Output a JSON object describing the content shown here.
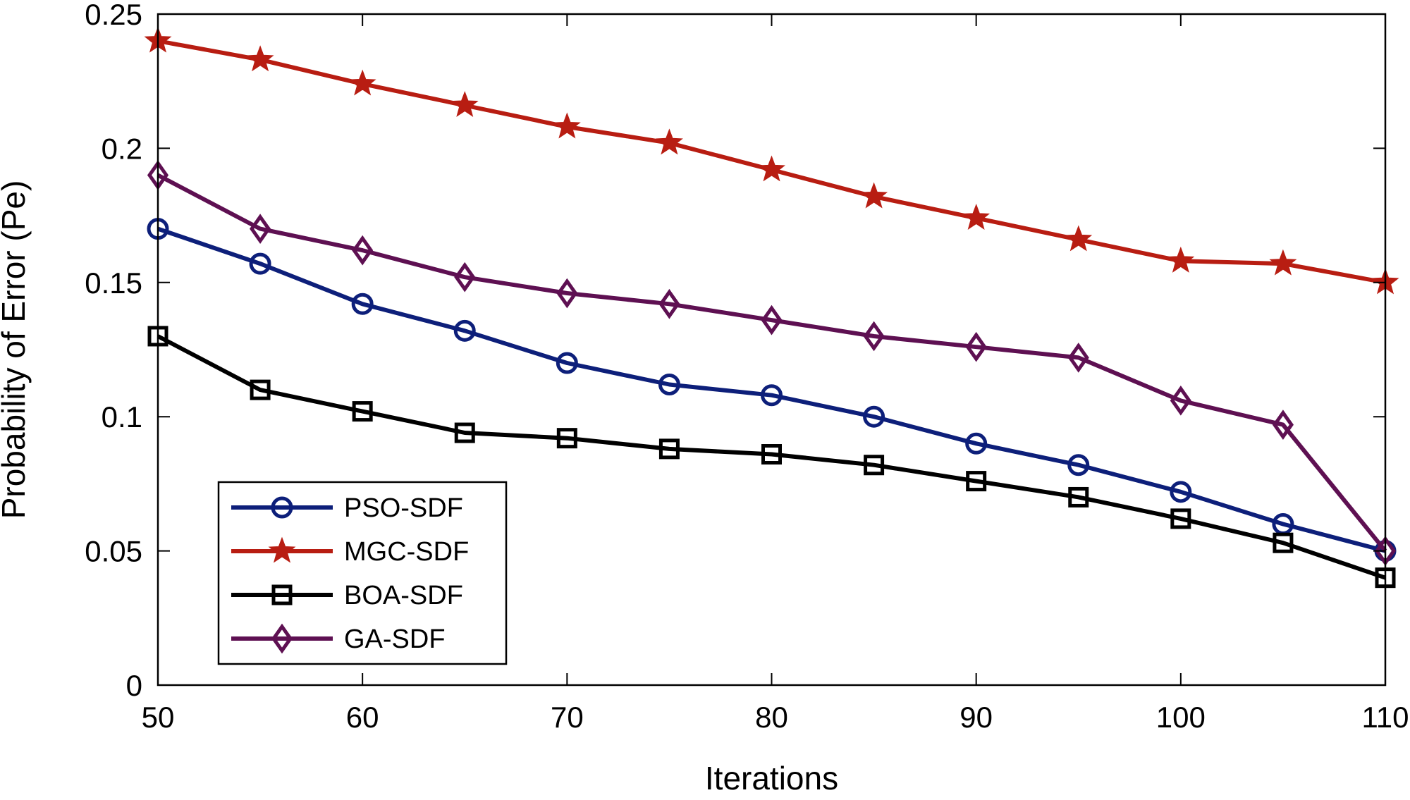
{
  "chart_data": {
    "type": "line",
    "title": "",
    "xlabel": "Iterations",
    "ylabel": "Probability of Error (Pe)",
    "xlim": [
      50,
      110
    ],
    "ylim": [
      0,
      0.25
    ],
    "xticks": [
      50,
      60,
      70,
      80,
      90,
      100,
      110
    ],
    "yticks": [
      0,
      0.05,
      0.1,
      0.15,
      0.2,
      0.25
    ],
    "xtick_labels": [
      "50",
      "60",
      "70",
      "80",
      "90",
      "100",
      "110"
    ],
    "ytick_labels": [
      "0",
      "0.05",
      "0.1",
      "0.15",
      "0.2",
      "0.25"
    ],
    "grid": false,
    "legend_position": "bottom-left",
    "x": [
      50,
      55,
      60,
      65,
      70,
      75,
      80,
      85,
      90,
      95,
      100,
      105,
      110
    ],
    "series": [
      {
        "name": "PSO-SDF",
        "color": "#0d1f7a",
        "marker": "circle",
        "values": [
          0.17,
          0.157,
          0.142,
          0.132,
          0.12,
          0.112,
          0.108,
          0.1,
          0.09,
          0.082,
          0.072,
          0.06,
          0.05
        ]
      },
      {
        "name": "MGC-SDF",
        "color": "#b81d12",
        "marker": "star",
        "values": [
          0.24,
          0.233,
          0.224,
          0.216,
          0.208,
          0.202,
          0.192,
          0.182,
          0.174,
          0.166,
          0.158,
          0.157,
          0.15
        ]
      },
      {
        "name": "BOA-SDF",
        "color": "#000000",
        "marker": "square",
        "values": [
          0.13,
          0.11,
          0.102,
          0.094,
          0.092,
          0.088,
          0.086,
          0.082,
          0.076,
          0.07,
          0.062,
          0.053,
          0.04
        ]
      },
      {
        "name": "GA-SDF",
        "color": "#5e1052",
        "marker": "diamond",
        "values": [
          0.19,
          0.17,
          0.162,
          0.152,
          0.146,
          0.142,
          0.136,
          0.13,
          0.126,
          0.122,
          0.106,
          0.097,
          0.05
        ]
      }
    ]
  }
}
